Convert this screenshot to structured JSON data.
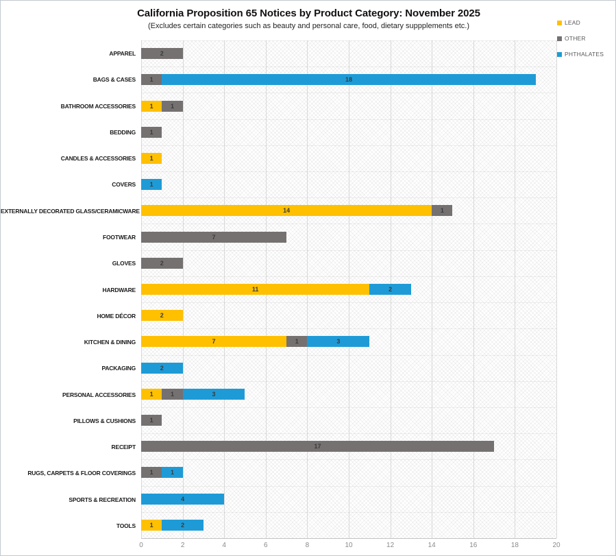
{
  "chart_data": {
    "type": "bar",
    "orientation": "horizontal",
    "stacked": true,
    "title": "California Proposition 65 Notices by Product Category: November 2025",
    "subtitle": "(Excludes certain categories such as beauty and personal care, food, dietary suppplements etc.)",
    "categories": [
      "APPAREL",
      "BAGS & CASES",
      "BATHROOM ACCESSORIES",
      "BEDDING",
      "CANDLES & ACCESSORIES",
      "COVERS",
      "EXTERNALLY DECORATED GLASS/CERAMICWARE",
      "FOOTWEAR",
      "GLOVES",
      "HARDWARE",
      "HOME DÉCOR",
      "KITCHEN & DINING",
      "PACKAGING",
      "PERSONAL ACCESSORIES",
      "PILLOWS & CUSHIONS",
      "RECEIPT",
      "RUGS, CARPETS & FLOOR COVERINGS",
      "SPORTS & RECREATION",
      "TOOLS"
    ],
    "series": [
      {
        "name": "LEAD",
        "color": "#FFC000",
        "values": [
          0,
          0,
          1,
          0,
          1,
          0,
          14,
          0,
          0,
          11,
          2,
          7,
          0,
          1,
          0,
          0,
          0,
          0,
          1
        ]
      },
      {
        "name": "OTHER",
        "color": "#757171",
        "values": [
          2,
          1,
          1,
          1,
          0,
          0,
          1,
          7,
          2,
          0,
          0,
          1,
          0,
          1,
          1,
          17,
          1,
          0,
          0
        ]
      },
      {
        "name": "PHTHALATES",
        "color": "#1E9BD7",
        "values": [
          0,
          18,
          0,
          0,
          0,
          1,
          0,
          0,
          0,
          2,
          0,
          3,
          2,
          3,
          0,
          0,
          1,
          4,
          2
        ]
      }
    ],
    "xlim": [
      0,
      20
    ],
    "x_ticks": [
      0,
      2,
      4,
      6,
      8,
      10,
      12,
      14,
      16,
      18,
      20
    ],
    "legend_position": "top-right",
    "grid": true
  }
}
